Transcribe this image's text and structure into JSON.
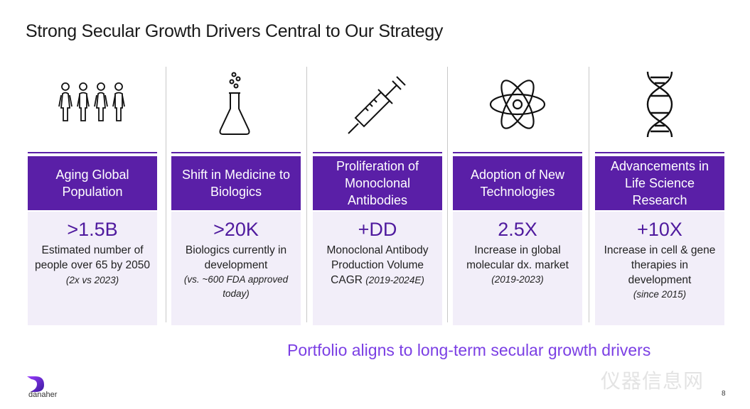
{
  "title": "Strong Secular Growth Drivers Central to Our Strategy",
  "columns": [
    {
      "icon": "people-icon",
      "header": "Aging Global Population",
      "big": ">1.5B",
      "desc": "Estimated number of people over 65 by 2050",
      "sub": "(2x vs 2023)"
    },
    {
      "icon": "flask-icon",
      "header": "Shift in Medicine to Biologics",
      "big": ">20K",
      "desc": "Biologics currently in development",
      "sub": "(vs. ~600 FDA approved today)"
    },
    {
      "icon": "syringe-icon",
      "header": "Proliferation of Monoclonal Antibodies",
      "big": "+DD",
      "desc": "Monoclonal Antibody Production Volume CAGR",
      "sub": "(2019-2024E)"
    },
    {
      "icon": "atom-icon",
      "header": "Adoption of New Technologies",
      "big": "2.5X",
      "desc": "Increase in global molecular dx. market",
      "sub": "(2019-2023)"
    },
    {
      "icon": "dna-icon",
      "header": "Advancements in Life Science Research",
      "big": "+10X",
      "desc": "Increase in cell & gene therapies in development",
      "sub": "(since 2015)"
    }
  ],
  "tagline": "Portfolio aligns to long-term secular growth drivers",
  "logo_text": "danaher",
  "watermark": "仪器信息网",
  "page_number": "8",
  "colors": {
    "band": "#5a1fa7",
    "card": "#f2eef9",
    "big_number": "#4f1a9e",
    "tagline": "#7b3fe4"
  }
}
